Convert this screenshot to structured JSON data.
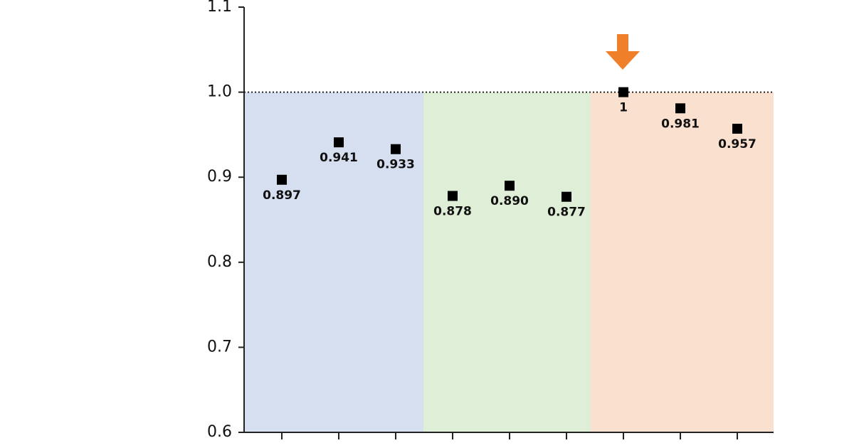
{
  "chart_data": {
    "type": "scatter",
    "categories": [
      null,
      null,
      null,
      null,
      null,
      null,
      null,
      null,
      null
    ],
    "values": [
      0.897,
      0.941,
      0.933,
      0.878,
      0.89,
      0.877,
      1,
      0.981,
      0.957
    ],
    "value_labels": [
      "0.897",
      "0.941",
      "0.933",
      "0.878",
      "0.890",
      "0.877",
      "1",
      "0.981",
      "0.957"
    ],
    "color": "#000000",
    "reference_line": 1,
    "ylim": [
      0.6,
      1.1
    ],
    "yticks": [
      0.6,
      0.7,
      0.8,
      0.9,
      {
        "value": 1,
        "label": "1.0"
      },
      1.1
    ]
  }
}
